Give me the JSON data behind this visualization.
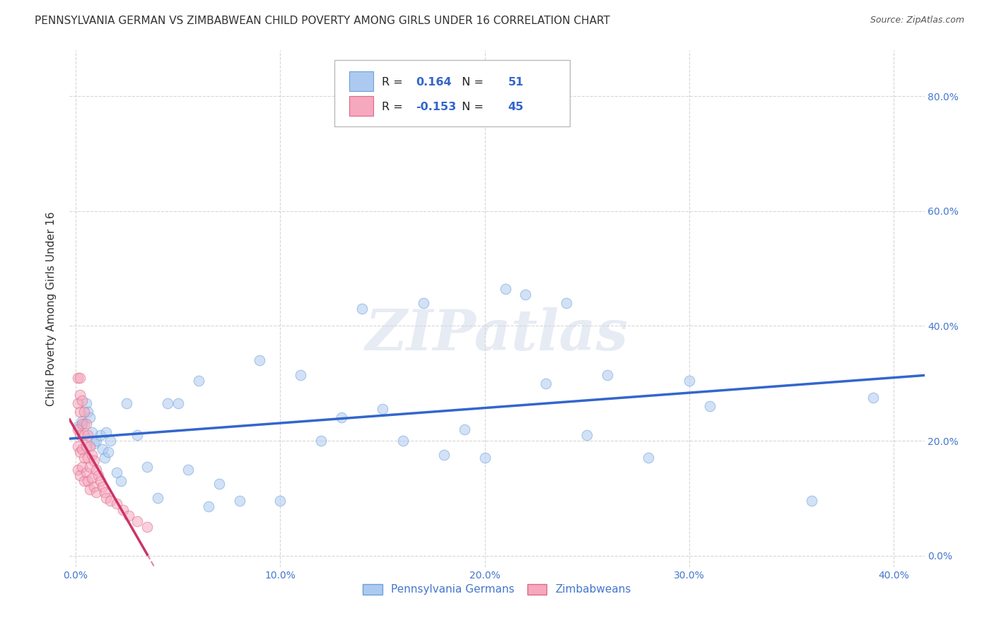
{
  "title": "PENNSYLVANIA GERMAN VS ZIMBABWEAN CHILD POVERTY AMONG GIRLS UNDER 16 CORRELATION CHART",
  "source": "Source: ZipAtlas.com",
  "ylabel": "Child Poverty Among Girls Under 16",
  "x_tick_labels": [
    "0.0%",
    "10.0%",
    "20.0%",
    "30.0%",
    "40.0%"
  ],
  "x_tick_values": [
    0.0,
    0.1,
    0.2,
    0.3,
    0.4
  ],
  "y_tick_labels_right": [
    "0.0%",
    "20.0%",
    "40.0%",
    "60.0%",
    "80.0%"
  ],
  "y_tick_values_right": [
    0.0,
    0.2,
    0.4,
    0.6,
    0.8
  ],
  "xlim": [
    -0.003,
    0.415
  ],
  "ylim": [
    -0.02,
    0.88
  ],
  "pg_color": "#adc9f0",
  "pg_edge_color": "#6ba3d8",
  "zw_color": "#f5a8be",
  "zw_edge_color": "#e06888",
  "pg_line_color": "#3366cc",
  "zw_line_color": "#cc3366",
  "R_pg": 0.164,
  "N_pg": 51,
  "R_zw": -0.153,
  "N_zw": 45,
  "legend_label_pg": "Pennsylvania Germans",
  "legend_label_zw": "Zimbabweans",
  "pg_x": [
    0.001,
    0.003,
    0.004,
    0.005,
    0.006,
    0.007,
    0.008,
    0.009,
    0.01,
    0.012,
    0.013,
    0.014,
    0.015,
    0.016,
    0.017,
    0.02,
    0.022,
    0.025,
    0.03,
    0.035,
    0.04,
    0.045,
    0.05,
    0.055,
    0.06,
    0.065,
    0.07,
    0.08,
    0.09,
    0.1,
    0.11,
    0.12,
    0.13,
    0.14,
    0.15,
    0.16,
    0.17,
    0.18,
    0.19,
    0.2,
    0.21,
    0.22,
    0.23,
    0.24,
    0.25,
    0.26,
    0.28,
    0.3,
    0.31,
    0.36,
    0.39
  ],
  "pg_y": [
    0.225,
    0.235,
    0.23,
    0.265,
    0.25,
    0.24,
    0.215,
    0.195,
    0.2,
    0.21,
    0.185,
    0.17,
    0.215,
    0.18,
    0.2,
    0.145,
    0.13,
    0.265,
    0.21,
    0.155,
    0.1,
    0.265,
    0.265,
    0.15,
    0.305,
    0.085,
    0.125,
    0.095,
    0.34,
    0.095,
    0.315,
    0.2,
    0.24,
    0.43,
    0.255,
    0.2,
    0.44,
    0.175,
    0.22,
    0.17,
    0.465,
    0.455,
    0.3,
    0.44,
    0.21,
    0.315,
    0.17,
    0.305,
    0.26,
    0.095,
    0.275
  ],
  "zw_x": [
    0.001,
    0.001,
    0.001,
    0.001,
    0.001,
    0.002,
    0.002,
    0.002,
    0.002,
    0.002,
    0.002,
    0.003,
    0.003,
    0.003,
    0.003,
    0.004,
    0.004,
    0.004,
    0.004,
    0.005,
    0.005,
    0.005,
    0.006,
    0.006,
    0.006,
    0.007,
    0.007,
    0.007,
    0.008,
    0.008,
    0.009,
    0.009,
    0.01,
    0.01,
    0.011,
    0.012,
    0.013,
    0.014,
    0.015,
    0.017,
    0.02,
    0.023,
    0.026,
    0.03,
    0.035
  ],
  "zw_y": [
    0.31,
    0.265,
    0.22,
    0.19,
    0.15,
    0.31,
    0.28,
    0.25,
    0.21,
    0.18,
    0.14,
    0.27,
    0.23,
    0.185,
    0.155,
    0.25,
    0.21,
    0.17,
    0.13,
    0.23,
    0.19,
    0.145,
    0.21,
    0.17,
    0.13,
    0.19,
    0.155,
    0.115,
    0.175,
    0.135,
    0.165,
    0.12,
    0.15,
    0.11,
    0.14,
    0.13,
    0.12,
    0.11,
    0.1,
    0.095,
    0.09,
    0.08,
    0.07,
    0.06,
    0.05
  ],
  "watermark": "ZIPatlas",
  "background_color": "#ffffff",
  "grid_color": "#cccccc",
  "title_fontsize": 11,
  "axis_label_fontsize": 11,
  "tick_fontsize": 10,
  "marker_size": 110,
  "marker_alpha": 0.55
}
